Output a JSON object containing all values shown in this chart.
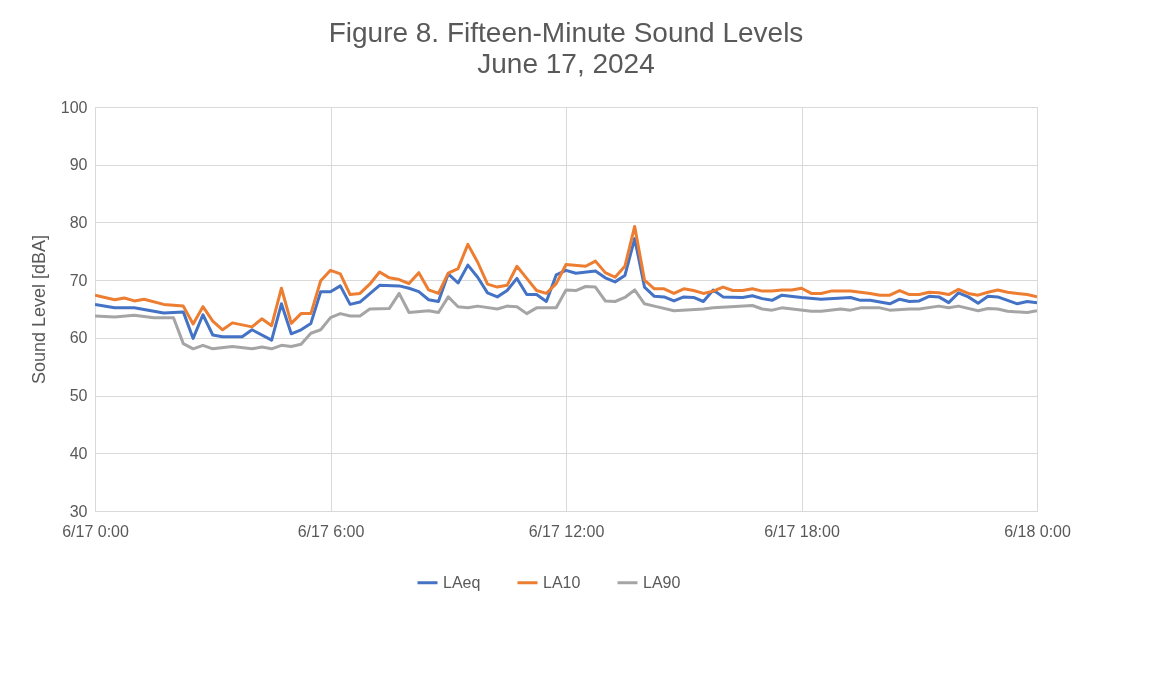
{
  "chart_data": {
    "type": "line",
    "title": "Figure 8.  Fifteen-Minute Sound Levels",
    "subtitle": "June 17, 2024",
    "ylabel": "Sound Level [dBA]",
    "xlim": [
      "2024-06-17T00:00",
      "2024-06-18T00:00"
    ],
    "xticks": [
      {
        "value": "2024-06-17T00:00",
        "label": "6/17 0:00"
      },
      {
        "value": "2024-06-17T06:00",
        "label": "6/17 6:00"
      },
      {
        "value": "2024-06-17T12:00",
        "label": "6/17 12:00"
      },
      {
        "value": "2024-06-17T18:00",
        "label": "6/17 18:00"
      },
      {
        "value": "2024-06-18T00:00",
        "label": "6/18 0:00"
      }
    ],
    "ylim": [
      30,
      100
    ],
    "yticks": [
      30,
      40,
      50,
      60,
      70,
      80,
      90,
      100
    ],
    "grid": true,
    "legend": "bottom",
    "series": [
      {
        "name": "LAeq",
        "color": "#4472c4",
        "x": [
          "2024-06-17T00:00",
          "2024-06-17T00:30",
          "2024-06-17T01:00",
          "2024-06-17T01:45",
          "2024-06-17T02:15",
          "2024-06-17T02:30",
          "2024-06-17T02:45",
          "2024-06-17T03:00",
          "2024-06-17T03:15",
          "2024-06-17T03:45",
          "2024-06-17T04:00",
          "2024-06-17T04:30",
          "2024-06-17T04:45",
          "2024-06-17T05:00",
          "2024-06-17T05:15",
          "2024-06-17T05:30",
          "2024-06-17T05:45",
          "2024-06-17T06:00",
          "2024-06-17T06:15",
          "2024-06-17T06:30",
          "2024-06-17T06:45",
          "2024-06-17T07:15",
          "2024-06-17T07:45",
          "2024-06-17T08:00",
          "2024-06-17T08:15",
          "2024-06-17T08:30",
          "2024-06-17T08:45",
          "2024-06-17T09:00",
          "2024-06-17T09:15",
          "2024-06-17T09:30",
          "2024-06-17T09:45",
          "2024-06-17T10:00",
          "2024-06-17T10:15",
          "2024-06-17T10:30",
          "2024-06-17T10:45",
          "2024-06-17T11:00",
          "2024-06-17T11:15",
          "2024-06-17T11:30",
          "2024-06-17T11:45",
          "2024-06-17T12:00",
          "2024-06-17T12:15",
          "2024-06-17T12:45",
          "2024-06-17T13:00",
          "2024-06-17T13:15",
          "2024-06-17T13:30",
          "2024-06-17T13:45",
          "2024-06-17T14:00",
          "2024-06-17T14:15",
          "2024-06-17T14:30",
          "2024-06-17T14:45",
          "2024-06-17T15:00",
          "2024-06-17T15:15",
          "2024-06-17T15:30",
          "2024-06-17T15:45",
          "2024-06-17T16:00",
          "2024-06-17T16:30",
          "2024-06-17T16:45",
          "2024-06-17T17:00",
          "2024-06-17T17:15",
          "2024-06-17T17:30",
          "2024-06-17T18:00",
          "2024-06-17T18:30",
          "2024-06-17T19:15",
          "2024-06-17T19:30",
          "2024-06-17T19:45",
          "2024-06-17T20:15",
          "2024-06-17T20:30",
          "2024-06-17T20:45",
          "2024-06-17T21:00",
          "2024-06-17T21:15",
          "2024-06-17T21:30",
          "2024-06-17T21:45",
          "2024-06-17T22:00",
          "2024-06-17T22:15",
          "2024-06-17T22:30",
          "2024-06-17T22:45",
          "2024-06-17T23:00",
          "2024-06-17T23:15",
          "2024-06-17T23:30",
          "2024-06-17T23:45",
          "2024-06-18T00:00"
        ],
        "values": [
          65.8,
          65.2,
          65.2,
          64.3,
          64.5,
          59.9,
          64.0,
          60.5,
          60.2,
          60.2,
          61.4,
          59.6,
          65.9,
          60.7,
          61.4,
          62.5,
          68.0,
          68.0,
          69.0,
          65.8,
          66.2,
          69.1,
          69.0,
          68.6,
          68.0,
          66.6,
          66.3,
          71.1,
          69.5,
          72.6,
          70.5,
          67.8,
          67.1,
          68.2,
          70.3,
          67.5,
          67.5,
          66.3,
          70.9,
          71.7,
          71.2,
          71.6,
          70.4,
          69.7,
          70.8,
          77.2,
          68.8,
          67.2,
          67.1,
          66.4,
          67.1,
          67.0,
          66.3,
          68.3,
          67.1,
          67.0,
          67.3,
          66.8,
          66.5,
          67.4,
          67.0,
          66.7,
          67.0,
          66.5,
          66.5,
          65.9,
          66.7,
          66.3,
          66.4,
          67.2,
          67.1,
          66.1,
          67.8,
          67.1,
          66.0,
          67.2,
          67.1,
          66.5,
          65.9,
          66.3,
          66.1
        ]
      },
      {
        "name": "LA10",
        "color": "#ed7d31",
        "x": [
          "2024-06-17T00:00",
          "2024-06-17T00:30",
          "2024-06-17T00:45",
          "2024-06-17T01:00",
          "2024-06-17T01:15",
          "2024-06-17T01:45",
          "2024-06-17T02:15",
          "2024-06-17T02:30",
          "2024-06-17T02:45",
          "2024-06-17T03:00",
          "2024-06-17T03:15",
          "2024-06-17T03:30",
          "2024-06-17T04:00",
          "2024-06-17T04:15",
          "2024-06-17T04:30",
          "2024-06-17T04:45",
          "2024-06-17T05:00",
          "2024-06-17T05:15",
          "2024-06-17T05:30",
          "2024-06-17T05:45",
          "2024-06-17T06:00",
          "2024-06-17T06:15",
          "2024-06-17T06:30",
          "2024-06-17T06:45",
          "2024-06-17T07:00",
          "2024-06-17T07:15",
          "2024-06-17T07:30",
          "2024-06-17T07:45",
          "2024-06-17T08:00",
          "2024-06-17T08:15",
          "2024-06-17T08:30",
          "2024-06-17T08:45",
          "2024-06-17T09:00",
          "2024-06-17T09:15",
          "2024-06-17T09:30",
          "2024-06-17T09:45",
          "2024-06-17T10:00",
          "2024-06-17T10:15",
          "2024-06-17T10:30",
          "2024-06-17T10:45",
          "2024-06-17T11:00",
          "2024-06-17T11:15",
          "2024-06-17T11:30",
          "2024-06-17T11:45",
          "2024-06-17T12:00",
          "2024-06-17T12:30",
          "2024-06-17T12:45",
          "2024-06-17T13:00",
          "2024-06-17T13:15",
          "2024-06-17T13:30",
          "2024-06-17T13:45",
          "2024-06-17T14:00",
          "2024-06-17T14:15",
          "2024-06-17T14:30",
          "2024-06-17T14:45",
          "2024-06-17T15:00",
          "2024-06-17T15:15",
          "2024-06-17T15:30",
          "2024-06-17T15:45",
          "2024-06-17T16:00",
          "2024-06-17T16:15",
          "2024-06-17T16:30",
          "2024-06-17T16:45",
          "2024-06-17T17:00",
          "2024-06-17T17:15",
          "2024-06-17T17:30",
          "2024-06-17T17:45",
          "2024-06-17T18:00",
          "2024-06-17T18:15",
          "2024-06-17T18:30",
          "2024-06-17T18:45",
          "2024-06-17T19:15",
          "2024-06-17T19:45",
          "2024-06-17T20:00",
          "2024-06-17T20:15",
          "2024-06-17T20:30",
          "2024-06-17T20:45",
          "2024-06-17T21:00",
          "2024-06-17T21:15",
          "2024-06-17T21:30",
          "2024-06-17T21:45",
          "2024-06-17T22:00",
          "2024-06-17T22:15",
          "2024-06-17T22:30",
          "2024-06-17T22:45",
          "2024-06-17T23:00",
          "2024-06-17T23:15",
          "2024-06-17T23:30",
          "2024-06-17T23:45",
          "2024-06-18T00:00"
        ],
        "values": [
          67.4,
          66.6,
          66.9,
          66.4,
          66.7,
          65.8,
          65.5,
          62.4,
          65.4,
          62.9,
          61.4,
          62.6,
          61.9,
          63.3,
          62.1,
          68.6,
          62.5,
          64.2,
          64.2,
          69.9,
          71.7,
          71.1,
          67.5,
          67.7,
          69.3,
          71.4,
          70.4,
          70.1,
          69.4,
          71.3,
          68.3,
          67.7,
          71.2,
          72.0,
          76.2,
          73.1,
          69.3,
          68.8,
          69.1,
          72.4,
          70.3,
          68.2,
          67.7,
          69.4,
          72.7,
          72.4,
          73.3,
          71.3,
          70.5,
          72.4,
          79.3,
          70.0,
          68.5,
          68.5,
          67.7,
          68.5,
          68.2,
          67.7,
          68.1,
          68.8,
          68.2,
          68.2,
          68.5,
          68.1,
          68.1,
          68.3,
          68.3,
          68.6,
          67.7,
          67.7,
          68.1,
          68.1,
          67.7,
          67.4,
          67.4,
          68.2,
          67.5,
          67.5,
          67.9,
          67.8,
          67.5,
          68.4,
          67.7,
          67.4,
          67.9,
          68.3,
          67.9,
          67.7,
          67.5,
          67.1
        ]
      },
      {
        "name": "LA90",
        "color": "#a5a5a5",
        "x": [
          "2024-06-17T00:00",
          "2024-06-17T00:30",
          "2024-06-17T01:00",
          "2024-06-17T01:30",
          "2024-06-17T02:00",
          "2024-06-17T02:15",
          "2024-06-17T02:30",
          "2024-06-17T02:45",
          "2024-06-17T03:00",
          "2024-06-17T03:30",
          "2024-06-17T04:00",
          "2024-06-17T04:15",
          "2024-06-17T04:30",
          "2024-06-17T04:45",
          "2024-06-17T05:00",
          "2024-06-17T05:15",
          "2024-06-17T05:30",
          "2024-06-17T05:45",
          "2024-06-17T06:00",
          "2024-06-17T06:15",
          "2024-06-17T06:30",
          "2024-06-17T06:45",
          "2024-06-17T07:00",
          "2024-06-17T07:30",
          "2024-06-17T07:45",
          "2024-06-17T08:00",
          "2024-06-17T08:30",
          "2024-06-17T08:45",
          "2024-06-17T09:00",
          "2024-06-17T09:15",
          "2024-06-17T09:30",
          "2024-06-17T09:45",
          "2024-06-17T10:15",
          "2024-06-17T10:30",
          "2024-06-17T10:45",
          "2024-06-17T11:00",
          "2024-06-17T11:15",
          "2024-06-17T11:45",
          "2024-06-17T12:00",
          "2024-06-17T12:15",
          "2024-06-17T12:30",
          "2024-06-17T12:45",
          "2024-06-17T13:00",
          "2024-06-17T13:15",
          "2024-06-17T13:30",
          "2024-06-17T13:45",
          "2024-06-17T14:00",
          "2024-06-17T14:15",
          "2024-06-17T14:45",
          "2024-06-17T15:30",
          "2024-06-17T15:45",
          "2024-06-17T16:45",
          "2024-06-17T17:00",
          "2024-06-17T17:15",
          "2024-06-17T17:30",
          "2024-06-17T18:15",
          "2024-06-17T18:30",
          "2024-06-17T19:00",
          "2024-06-17T19:15",
          "2024-06-17T19:30",
          "2024-06-17T20:00",
          "2024-06-17T20:15",
          "2024-06-17T20:45",
          "2024-06-17T21:00",
          "2024-06-17T21:30",
          "2024-06-17T21:45",
          "2024-06-17T22:00",
          "2024-06-17T22:30",
          "2024-06-17T22:45",
          "2024-06-17T23:00",
          "2024-06-17T23:15",
          "2024-06-17T23:45",
          "2024-06-18T00:00"
        ],
        "values": [
          63.8,
          63.6,
          63.9,
          63.5,
          63.5,
          59.0,
          58.1,
          58.7,
          58.1,
          58.5,
          58.1,
          58.4,
          58.1,
          58.7,
          58.5,
          58.9,
          60.8,
          61.4,
          63.5,
          64.2,
          63.8,
          63.8,
          65.0,
          65.1,
          67.7,
          64.4,
          64.7,
          64.4,
          67.1,
          65.4,
          65.2,
          65.5,
          65.0,
          65.5,
          65.4,
          64.2,
          65.2,
          65.2,
          68.3,
          68.2,
          68.9,
          68.8,
          66.4,
          66.3,
          67.0,
          68.3,
          65.9,
          65.5,
          64.7,
          65.0,
          65.2,
          65.6,
          65.0,
          64.8,
          65.2,
          64.6,
          64.6,
          65.0,
          64.8,
          65.2,
          65.2,
          64.8,
          65.0,
          65.0,
          65.5,
          65.2,
          65.5,
          64.7,
          65.1,
          65.0,
          64.6,
          64.4,
          64.7
        ]
      }
    ]
  }
}
